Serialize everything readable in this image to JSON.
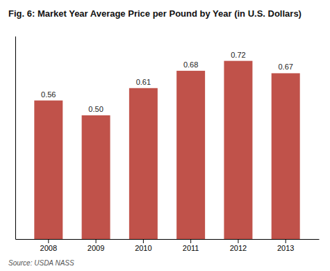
{
  "chart_data": {
    "type": "bar",
    "title": "Fig. 6: Market Year Average Price per Pound by Year (in U.S. Dollars)",
    "categories": [
      "2008",
      "2009",
      "2010",
      "2011",
      "2012",
      "2013"
    ],
    "values": [
      0.56,
      0.5,
      0.61,
      0.68,
      0.72,
      0.67
    ],
    "value_labels": [
      "0.56",
      "0.50",
      "0.61",
      "0.68",
      "0.72",
      "0.67"
    ],
    "data_labels": true,
    "color": "#c0524a",
    "ylim": [
      0,
      0.82
    ],
    "yticks": [],
    "tick_labels": "x",
    "grid": false,
    "annotations": [
      "Source: USDA NASS"
    ]
  }
}
